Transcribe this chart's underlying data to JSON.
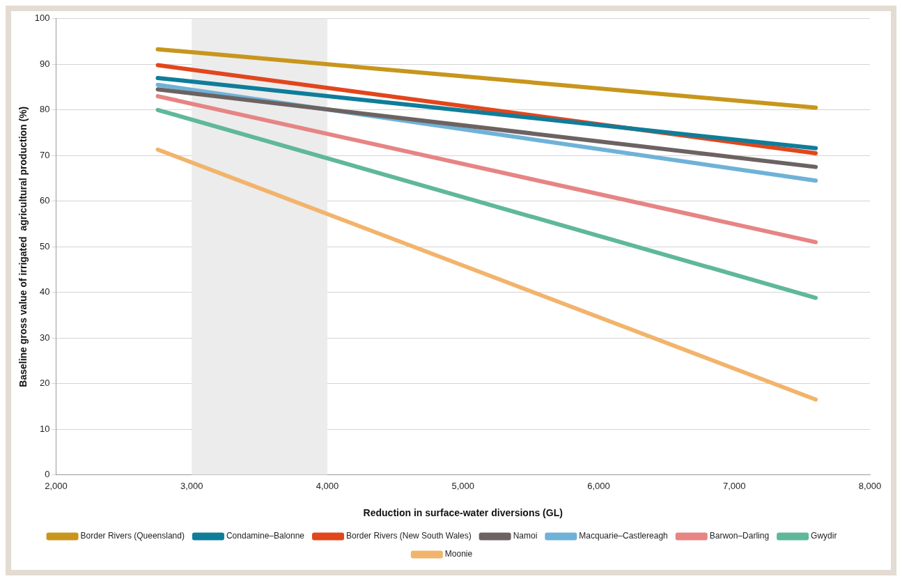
{
  "chart_data": {
    "type": "line",
    "xlabel": "Reduction in surface-water diversions (GL)",
    "ylabel": "Baseline gross value of irrigated  agricultural production (%)",
    "x": [
      2750,
      7600
    ],
    "series": [
      {
        "name": "Border Rivers (Queensland)",
        "color": "#c8961c",
        "values": [
          93.3,
          80.5
        ]
      },
      {
        "name": "Condamine–Balonne",
        "color": "#0f7d9a",
        "values": [
          87,
          71.6
        ]
      },
      {
        "name": "Border Rivers (New South Wales)",
        "color": "#e2461c",
        "values": [
          89.8,
          70.5
        ]
      },
      {
        "name": "Namoi",
        "color": "#6d6262",
        "values": [
          84.5,
          67.5
        ]
      },
      {
        "name": "Macquarie–Castlereagh",
        "color": "#6fb2d8",
        "values": [
          85.5,
          64.5
        ]
      },
      {
        "name": "Barwon–Darling",
        "color": "#e78484",
        "values": [
          83,
          51
        ]
      },
      {
        "name": "Gwydir",
        "color": "#5fb89a",
        "values": [
          80,
          38.8
        ]
      },
      {
        "name": "Moonie",
        "color": "#f2b46c",
        "values": [
          71.3,
          16.5
        ]
      }
    ],
    "xlim": [
      2000,
      8000
    ],
    "xticks": [
      {
        "value": 2000,
        "label": "2,000"
      },
      {
        "value": 3000,
        "label": "3,000"
      },
      {
        "value": 4000,
        "label": "4,000"
      },
      {
        "value": 5000,
        "label": "5,000"
      },
      {
        "value": 6000,
        "label": "6,000"
      },
      {
        "value": 7000,
        "label": "7,000"
      },
      {
        "value": 8000,
        "label": "8,000"
      }
    ],
    "ylim": [
      0,
      100
    ],
    "yticks": [
      0,
      10,
      20,
      30,
      40,
      50,
      60,
      70,
      80,
      90,
      100
    ],
    "bands": [
      {
        "axis": "x",
        "from": 3000,
        "to": 4000,
        "color": "#ececec"
      }
    ],
    "grid": "y",
    "legend": "bottom",
    "marker": "none",
    "line_style": "solid"
  }
}
